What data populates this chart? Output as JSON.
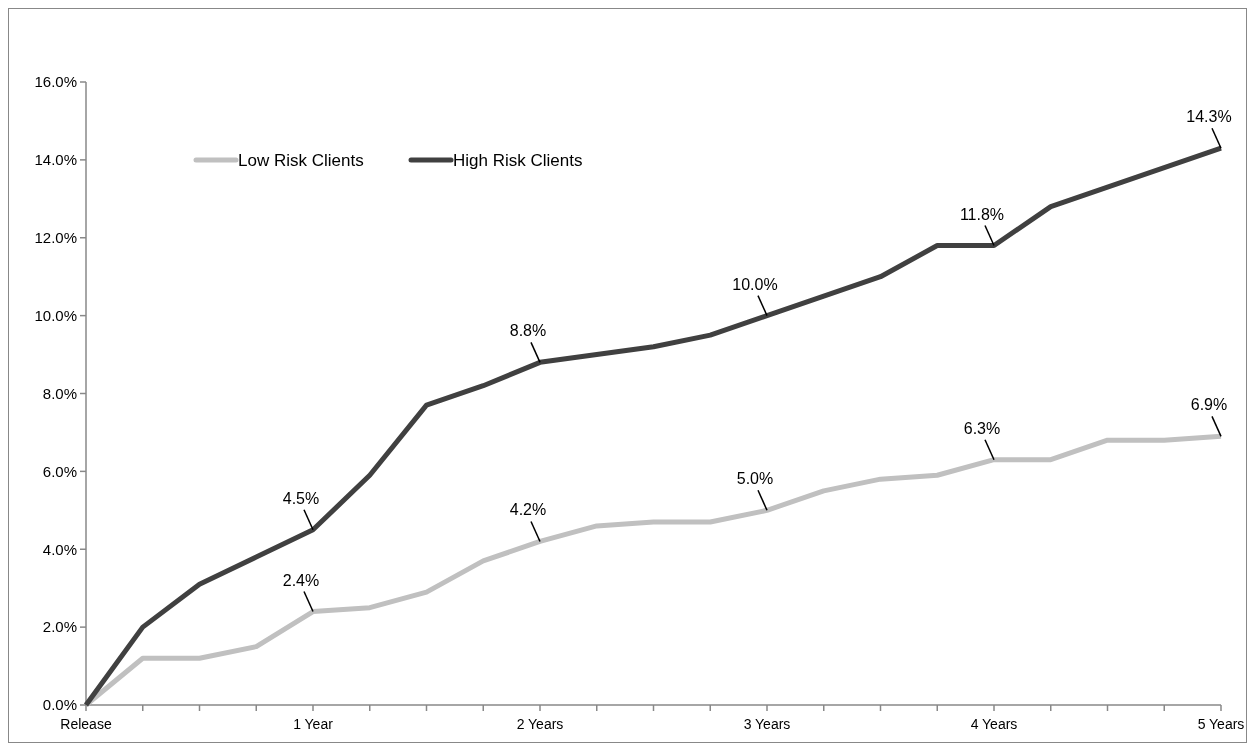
{
  "chart_data": {
    "type": "line",
    "categories": [
      "Release",
      null,
      null,
      null,
      "1 Year",
      null,
      null,
      null,
      "2 Years",
      null,
      null,
      null,
      "3 Years",
      null,
      null,
      null,
      "4 Years",
      null,
      null,
      null,
      "5 Years"
    ],
    "series": [
      {
        "name": "Low Risk Clients",
        "color": "#c0c0c0",
        "values": [
          0,
          1.2,
          1.2,
          1.5,
          2.4,
          2.5,
          2.9,
          3.7,
          4.2,
          4.6,
          4.7,
          4.7,
          5.0,
          5.5,
          5.8,
          5.9,
          6.3,
          6.3,
          6.8,
          6.8,
          6.9
        ],
        "value_labels": [
          null,
          null,
          null,
          null,
          "2.4%",
          null,
          null,
          null,
          "4.2%",
          null,
          null,
          null,
          "5.0%",
          null,
          null,
          null,
          "6.3%",
          null,
          null,
          null,
          "6.9%"
        ]
      },
      {
        "name": "High Risk Clients",
        "color": "#404040",
        "values": [
          0,
          2.0,
          3.1,
          3.8,
          4.5,
          5.9,
          7.7,
          8.2,
          8.8,
          9.0,
          9.2,
          9.5,
          10.0,
          10.5,
          11.0,
          11.8,
          11.8,
          12.8,
          13.3,
          13.8,
          14.3
        ],
        "value_labels": [
          null,
          null,
          null,
          null,
          "4.5%",
          null,
          null,
          null,
          "8.8%",
          null,
          null,
          null,
          "10.0%",
          null,
          null,
          null,
          "11.8%",
          null,
          null,
          null,
          "14.3%"
        ]
      }
    ],
    "ylim": [
      0,
      16
    ],
    "yticks": [
      {
        "value": 0,
        "label": "0.0%"
      },
      {
        "value": 2,
        "label": "2.0%"
      },
      {
        "value": 4,
        "label": "4.0%"
      },
      {
        "value": 6,
        "label": "6.0%"
      },
      {
        "value": 8,
        "label": "8.0%"
      },
      {
        "value": 10,
        "label": "10.0%"
      },
      {
        "value": 12,
        "label": "12.0%"
      },
      {
        "value": 14,
        "label": "14.0%"
      },
      {
        "value": 16,
        "label": "16.0%"
      }
    ],
    "grid": false,
    "legend": "top left",
    "marker": "none",
    "line_style": "solid"
  }
}
